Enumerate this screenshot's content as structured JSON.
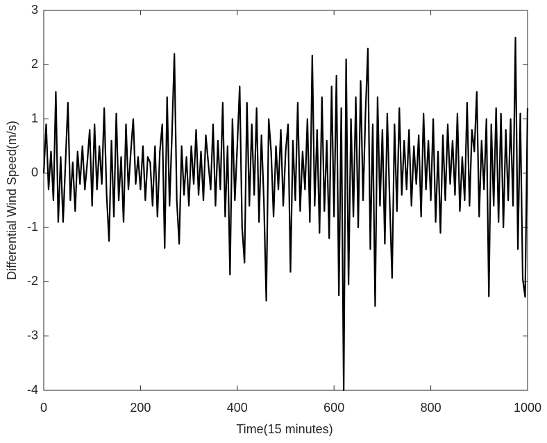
{
  "chart_data": {
    "type": "line",
    "xlabel": "Time(15 minutes)",
    "ylabel": "Differential Wind Speed(m/s)",
    "x": [
      0,
      5,
      10,
      15,
      20,
      25,
      30,
      35,
      40,
      45,
      50,
      55,
      60,
      65,
      70,
      75,
      80,
      85,
      90,
      95,
      100,
      105,
      110,
      115,
      120,
      125,
      130,
      135,
      140,
      145,
      150,
      155,
      160,
      165,
      170,
      175,
      180,
      185,
      190,
      195,
      200,
      205,
      210,
      215,
      220,
      225,
      230,
      235,
      240,
      245,
      250,
      255,
      260,
      265,
      270,
      275,
      280,
      285,
      290,
      295,
      300,
      305,
      310,
      315,
      320,
      325,
      330,
      335,
      340,
      345,
      350,
      355,
      360,
      365,
      370,
      375,
      380,
      385,
      390,
      395,
      400,
      405,
      410,
      415,
      420,
      425,
      430,
      435,
      440,
      445,
      450,
      455,
      460,
      465,
      470,
      475,
      480,
      485,
      490,
      495,
      500,
      505,
      510,
      515,
      520,
      525,
      530,
      535,
      540,
      545,
      550,
      555,
      560,
      565,
      570,
      575,
      580,
      585,
      590,
      595,
      600,
      605,
      610,
      615,
      620,
      625,
      630,
      635,
      640,
      645,
      650,
      655,
      660,
      665,
      670,
      675,
      680,
      685,
      690,
      695,
      700,
      705,
      710,
      715,
      720,
      725,
      730,
      735,
      740,
      745,
      750,
      755,
      760,
      765,
      770,
      775,
      780,
      785,
      790,
      795,
      800,
      805,
      810,
      815,
      820,
      825,
      830,
      835,
      840,
      845,
      850,
      855,
      860,
      865,
      870,
      875,
      880,
      885,
      890,
      895,
      900,
      905,
      910,
      915,
      920,
      925,
      930,
      935,
      940,
      945,
      950,
      955,
      960,
      965,
      970,
      975,
      980,
      985,
      990,
      995,
      1000
    ],
    "series": [
      {
        "color": "#000000",
        "values": [
          0,
          0.9,
          -0.3,
          0.4,
          -0.5,
          1.5,
          -0.9,
          0.3,
          -0.9,
          0.2,
          1.3,
          -0.5,
          0.2,
          -0.7,
          0.4,
          -0.2,
          0.5,
          -0.3,
          0.2,
          0.8,
          -0.6,
          0.9,
          -0.3,
          0.5,
          -0.2,
          1.2,
          -0.4,
          -1.25,
          0.6,
          -0.8,
          1.1,
          -0.5,
          0.3,
          -0.9,
          0.9,
          -0.3,
          0.4,
          1.0,
          -0.2,
          0.3,
          -0.3,
          0.5,
          -0.5,
          0.3,
          0.2,
          -0.6,
          0.5,
          -0.8,
          0.4,
          0.9,
          -1.38,
          1.4,
          -0.6,
          0.7,
          2.2,
          -0.5,
          -1.3,
          0.5,
          -0.4,
          0.3,
          -0.6,
          0.5,
          -0.2,
          0.8,
          -0.4,
          0.4,
          -0.5,
          0.7,
          0.2,
          -0.3,
          0.9,
          -0.6,
          0.6,
          -0.3,
          1.3,
          -0.8,
          0.5,
          -1.87,
          1.0,
          -0.5,
          0.5,
          1.6,
          -1.0,
          -1.65,
          1.3,
          -0.6,
          0.9,
          -0.4,
          1.2,
          -0.9,
          0.7,
          -0.5,
          -2.35,
          1.0,
          0.4,
          -0.8,
          0.5,
          -0.3,
          0.8,
          -0.6,
          0.4,
          0.9,
          -1.82,
          0.6,
          -0.5,
          1.3,
          -0.7,
          0.4,
          -0.3,
          1.0,
          -0.9,
          2.17,
          -0.6,
          0.8,
          -1.1,
          1.4,
          -0.7,
          0.6,
          -1.2,
          1.6,
          -0.8,
          1.8,
          -2.25,
          1.2,
          -4,
          2.1,
          -2.05,
          1.0,
          -0.8,
          1.4,
          -1.0,
          1.7,
          -0.5,
          1.1,
          2.3,
          -1.4,
          0.9,
          -2.45,
          1.4,
          -0.6,
          0.8,
          -1.3,
          1.1,
          -0.5,
          -1.93,
          0.9,
          -0.7,
          1.2,
          -0.4,
          0.6,
          -0.3,
          0.8,
          -0.6,
          0.5,
          -0.2,
          0.7,
          -0.8,
          1.1,
          -0.3,
          0.6,
          -0.5,
          1.0,
          -0.9,
          0.4,
          -1.1,
          0.7,
          -0.5,
          0.9,
          -0.2,
          0.6,
          -0.4,
          1.1,
          -0.7,
          0.3,
          -0.5,
          1.3,
          -0.6,
          0.8,
          0.4,
          1.5,
          -0.8,
          0.6,
          -0.3,
          1.0,
          -2.27,
          0.9,
          -0.6,
          1.2,
          -0.9,
          1.1,
          -1.0,
          0.8,
          -0.5,
          1.0,
          -0.6,
          2.5,
          -1.4,
          1.1,
          -1.95,
          -2.28,
          1.2
        ]
      }
    ],
    "xlim": [
      0,
      1000
    ],
    "xticks": [
      0,
      200,
      400,
      600,
      800,
      1000
    ],
    "ylim": [
      -4,
      3
    ],
    "yticks": [
      -4,
      -3,
      -2,
      -1,
      0,
      1,
      2,
      3
    ]
  }
}
